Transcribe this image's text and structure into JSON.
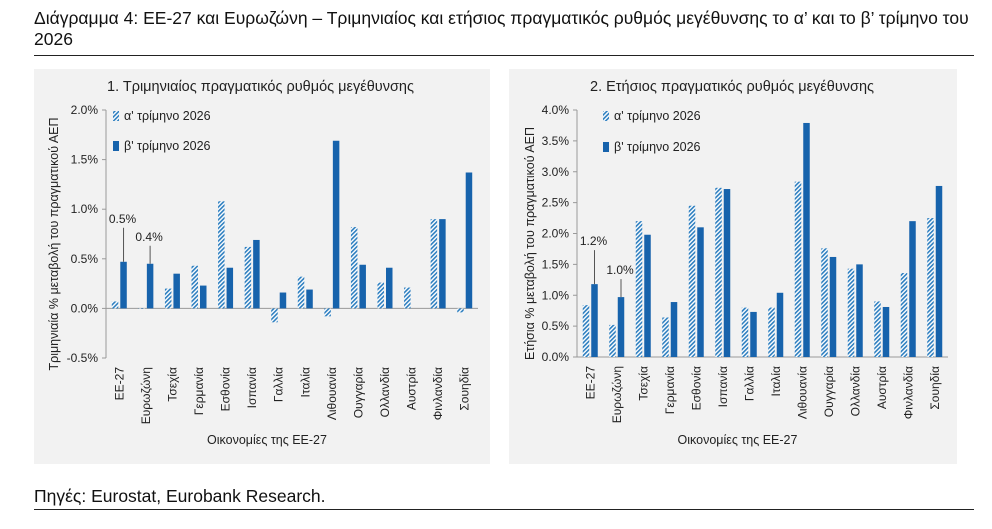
{
  "page": {
    "title": "Διάγραμμα 4: ΕΕ-27 και Ευρωζώνη – Τριμηνιαίος και ετήσιος πραγματικός ρυθμός μεγέθυνσης το α’ και το β’ τρίμηνο του 2026",
    "source": "Πηγές: Eurostat, Eurobank Research."
  },
  "colors": {
    "q1_hatch": "#2e7fc0",
    "q2_solid": "#1763ac",
    "panel_bg": "#f2f2f2"
  },
  "chart_data": [
    {
      "type": "bar",
      "title": "1. Τριμηνιαίος πραγματικός ρυθμός μεγέθυνσης",
      "xlabel": "Οικονομίες της ΕΕ-27",
      "ylabel": "Τριμηνιαία % μεταβολή του πραγματικού ΑΕΠ",
      "ylim": [
        -0.5,
        2.0
      ],
      "yticks": [
        -0.5,
        0.0,
        0.5,
        1.0,
        1.5,
        2.0
      ],
      "ytick_labels": [
        "-0.5%",
        "0.0%",
        "0.5%",
        "1.0%",
        "1.5%",
        "2.0%"
      ],
      "legend_position": "top-left",
      "categories": [
        "ΕΕ-27",
        "Ευρωζώνη",
        "Τσεχία",
        "Γερμανία",
        "Εσθονία",
        "Ισπανία",
        "Γαλλία",
        "Ιταλία",
        "Λιθουανία",
        "Ουγγαρία",
        "Ολλανδία",
        "Αυστρία",
        "Φινλανδία",
        "Σουηδία"
      ],
      "series": [
        {
          "name": "α' τρίμηνο 2026",
          "style": "hatched",
          "values": [
            0.07,
            0.0,
            0.2,
            0.43,
            1.08,
            0.62,
            -0.14,
            0.32,
            -0.08,
            0.82,
            0.26,
            0.21,
            0.9,
            -0.04
          ]
        },
        {
          "name": "β' τρίμηνο 2026",
          "style": "solid",
          "values": [
            0.47,
            0.45,
            0.35,
            0.23,
            0.41,
            0.69,
            0.16,
            0.19,
            1.69,
            0.44,
            0.41,
            null,
            0.9,
            1.37
          ]
        }
      ],
      "annotations": [
        {
          "text": "0.5%",
          "category_index": 0
        },
        {
          "text": "0.4%",
          "category_index": 1
        }
      ]
    },
    {
      "type": "bar",
      "title": "2. Ετήσιος πραγματικός ρυθμός μεγέθυνσης",
      "xlabel": "Οικονομίες της ΕΕ-27",
      "ylabel": "Ετήσια % μεταβολή του πραγματικού ΑΕΠ",
      "ylim": [
        0.0,
        4.0
      ],
      "yticks": [
        0.0,
        0.5,
        1.0,
        1.5,
        2.0,
        2.5,
        3.0,
        3.5,
        4.0
      ],
      "ytick_labels": [
        "0.0%",
        "0.5%",
        "1.0%",
        "1.5%",
        "2.0%",
        "2.5%",
        "3.0%",
        "3.5%",
        "4.0%"
      ],
      "legend_position": "top-left",
      "categories": [
        "ΕΕ-27",
        "Ευρωζώνη",
        "Τσεχία",
        "Γερμανία",
        "Εσθονία",
        "Ισπανία",
        "Γαλλία",
        "Ιταλία",
        "Λιθουανία",
        "Ουγγαρία",
        "Ολλανδία",
        "Αυστρία",
        "Φινλανδία",
        "Σουηδία"
      ],
      "series": [
        {
          "name": "α' τρίμηνο 2026",
          "style": "hatched",
          "values": [
            0.84,
            0.52,
            2.2,
            0.64,
            2.45,
            2.74,
            0.8,
            0.8,
            2.84,
            1.76,
            1.43,
            0.9,
            1.36,
            2.25
          ]
        },
        {
          "name": "β' τρίμηνο 2026",
          "style": "solid",
          "values": [
            1.18,
            0.97,
            1.98,
            0.89,
            2.1,
            2.72,
            0.73,
            1.04,
            3.79,
            1.62,
            1.5,
            0.81,
            2.2,
            2.77
          ]
        }
      ],
      "annotations": [
        {
          "text": "1.2%",
          "category_index": 0
        },
        {
          "text": "1.0%",
          "category_index": 1
        }
      ]
    }
  ]
}
